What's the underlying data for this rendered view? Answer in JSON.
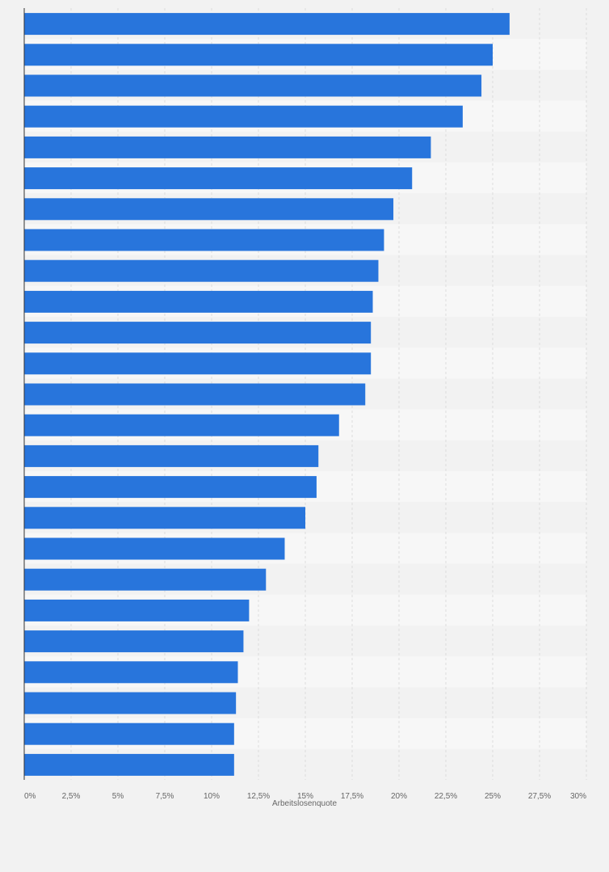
{
  "chart_data": {
    "type": "bar",
    "orientation": "horizontal",
    "xlabel": "Arbeitslosenquote",
    "xlim": [
      0,
      30
    ],
    "x_ticks": [
      "0%",
      "2,5%",
      "5%",
      "7,5%",
      "10%",
      "12,5%",
      "15%",
      "17,5%",
      "20%",
      "22,5%",
      "25%",
      "27,5%",
      "30%"
    ],
    "x_tick_values": [
      0,
      2.5,
      5,
      7.5,
      10,
      12.5,
      15,
      17.5,
      20,
      22.5,
      25,
      27.5,
      30
    ],
    "grid": true,
    "bar_color": "#2875dc",
    "values": [
      25.9,
      25.0,
      24.4,
      23.4,
      21.7,
      20.7,
      19.7,
      19.2,
      18.9,
      18.6,
      18.5,
      18.5,
      18.2,
      16.8,
      15.7,
      15.6,
      15.0,
      13.9,
      12.9,
      12.0,
      11.7,
      11.4,
      11.3,
      11.2,
      11.2
    ]
  }
}
